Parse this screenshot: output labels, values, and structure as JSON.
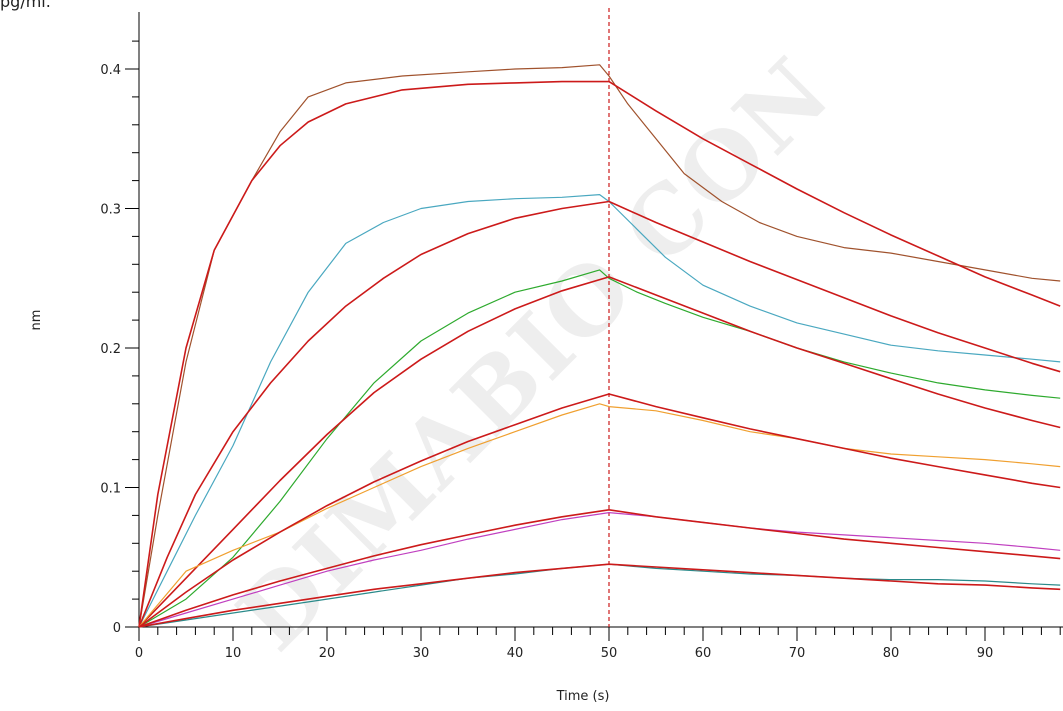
{
  "header_note": "pg/ml.",
  "watermark": "DIMABIO CON",
  "colors": {
    "fit": "#cc1a1a",
    "brown": "#a0522d",
    "cyan": "#4aa8c0",
    "green": "#2eaa2e",
    "orange": "#f0a030",
    "magenta": "#c040c0",
    "teal": "#2a8a8a",
    "divider": "#cc1a1a"
  },
  "chart_data": {
    "type": "line",
    "title": "",
    "xlabel": "Time (s)",
    "ylabel": "nm",
    "xlim": [
      0,
      98
    ],
    "ylim": [
      0,
      0.44
    ],
    "xticks": [
      0,
      10,
      20,
      30,
      40,
      50,
      60,
      70,
      80,
      90
    ],
    "yticks": [
      0,
      0.1,
      0.2,
      0.3,
      0.4
    ],
    "xtick_labels": [
      "0",
      "10",
      "20",
      "30",
      "40",
      "50",
      "60",
      "70",
      "80",
      "90"
    ],
    "ytick_labels": [
      "0",
      "0.1",
      "0.2",
      "0.3",
      "0.4"
    ],
    "vline_x": 50,
    "series": [
      {
        "color_key": "brown",
        "role": "data",
        "x": [
          0,
          2,
          5,
          8,
          12,
          15,
          18,
          22,
          28,
          35,
          40,
          45,
          49,
          50,
          52,
          55,
          58,
          62,
          66,
          70,
          75,
          80,
          85,
          90,
          95,
          98
        ],
        "y": [
          0,
          0.08,
          0.19,
          0.27,
          0.32,
          0.355,
          0.38,
          0.39,
          0.395,
          0.398,
          0.4,
          0.401,
          0.403,
          0.395,
          0.375,
          0.35,
          0.325,
          0.305,
          0.29,
          0.28,
          0.272,
          0.268,
          0.262,
          0.256,
          0.25,
          0.248
        ]
      },
      {
        "color_key": "fit",
        "role": "fit",
        "x": [
          0,
          2,
          5,
          8,
          12,
          15,
          18,
          22,
          28,
          35,
          40,
          45,
          50,
          55,
          60,
          65,
          70,
          75,
          80,
          85,
          90,
          95,
          98
        ],
        "y": [
          0,
          0.095,
          0.2,
          0.27,
          0.32,
          0.345,
          0.362,
          0.375,
          0.385,
          0.389,
          0.39,
          0.391,
          0.391,
          0.37,
          0.35,
          0.332,
          0.314,
          0.297,
          0.281,
          0.266,
          0.251,
          0.238,
          0.23
        ]
      },
      {
        "color_key": "cyan",
        "role": "data",
        "x": [
          0,
          3,
          6,
          10,
          14,
          18,
          22,
          26,
          30,
          35,
          40,
          45,
          49,
          50,
          53,
          56,
          60,
          65,
          70,
          75,
          80,
          85,
          90,
          95,
          98
        ],
        "y": [
          0,
          0.04,
          0.08,
          0.13,
          0.19,
          0.24,
          0.275,
          0.29,
          0.3,
          0.305,
          0.307,
          0.308,
          0.31,
          0.305,
          0.285,
          0.265,
          0.245,
          0.23,
          0.218,
          0.21,
          0.202,
          0.198,
          0.195,
          0.192,
          0.19
        ]
      },
      {
        "color_key": "fit",
        "role": "fit",
        "x": [
          0,
          3,
          6,
          10,
          14,
          18,
          22,
          26,
          30,
          35,
          40,
          45,
          50,
          55,
          60,
          65,
          70,
          75,
          80,
          85,
          90,
          95,
          98
        ],
        "y": [
          0,
          0.05,
          0.095,
          0.14,
          0.175,
          0.205,
          0.23,
          0.25,
          0.267,
          0.282,
          0.293,
          0.3,
          0.305,
          0.29,
          0.276,
          0.262,
          0.249,
          0.236,
          0.223,
          0.211,
          0.2,
          0.189,
          0.183
        ]
      },
      {
        "color_key": "green",
        "role": "data",
        "x": [
          0,
          5,
          10,
          15,
          20,
          25,
          30,
          35,
          40,
          45,
          49,
          50,
          53,
          56,
          60,
          65,
          70,
          75,
          80,
          85,
          90,
          95,
          98
        ],
        "y": [
          0,
          0.02,
          0.05,
          0.09,
          0.135,
          0.175,
          0.205,
          0.225,
          0.24,
          0.248,
          0.256,
          0.25,
          0.24,
          0.232,
          0.222,
          0.212,
          0.2,
          0.19,
          0.182,
          0.175,
          0.17,
          0.166,
          0.164
        ]
      },
      {
        "color_key": "fit",
        "role": "fit",
        "x": [
          0,
          5,
          10,
          15,
          20,
          25,
          30,
          35,
          40,
          45,
          50,
          55,
          60,
          65,
          70,
          75,
          80,
          85,
          90,
          95,
          98
        ],
        "y": [
          0,
          0.035,
          0.07,
          0.105,
          0.138,
          0.168,
          0.192,
          0.212,
          0.228,
          0.241,
          0.251,
          0.238,
          0.225,
          0.212,
          0.2,
          0.189,
          0.178,
          0.167,
          0.157,
          0.148,
          0.143
        ]
      },
      {
        "color_key": "orange",
        "role": "data",
        "x": [
          0,
          5,
          10,
          15,
          20,
          25,
          30,
          35,
          40,
          45,
          49,
          50,
          55,
          60,
          65,
          70,
          75,
          80,
          85,
          90,
          95,
          98
        ],
        "y": [
          0,
          0.04,
          0.055,
          0.068,
          0.085,
          0.1,
          0.115,
          0.128,
          0.14,
          0.152,
          0.16,
          0.158,
          0.155,
          0.148,
          0.14,
          0.135,
          0.128,
          0.124,
          0.122,
          0.12,
          0.117,
          0.115
        ]
      },
      {
        "color_key": "fit",
        "role": "fit",
        "x": [
          0,
          5,
          10,
          15,
          20,
          25,
          30,
          35,
          40,
          45,
          50,
          55,
          60,
          65,
          70,
          75,
          80,
          85,
          90,
          95,
          98
        ],
        "y": [
          0,
          0.025,
          0.048,
          0.068,
          0.087,
          0.104,
          0.119,
          0.133,
          0.145,
          0.157,
          0.167,
          0.158,
          0.15,
          0.142,
          0.135,
          0.128,
          0.121,
          0.115,
          0.109,
          0.103,
          0.1
        ]
      },
      {
        "color_key": "magenta",
        "role": "data",
        "x": [
          0,
          5,
          10,
          15,
          20,
          25,
          30,
          35,
          40,
          45,
          50,
          55,
          60,
          65,
          70,
          75,
          80,
          85,
          90,
          95,
          98
        ],
        "y": [
          0,
          0.01,
          0.02,
          0.03,
          0.04,
          0.048,
          0.055,
          0.063,
          0.07,
          0.077,
          0.082,
          0.079,
          0.075,
          0.071,
          0.068,
          0.066,
          0.064,
          0.062,
          0.06,
          0.057,
          0.055
        ]
      },
      {
        "color_key": "fit",
        "role": "fit",
        "x": [
          0,
          5,
          10,
          15,
          20,
          25,
          30,
          35,
          40,
          45,
          50,
          55,
          60,
          65,
          70,
          75,
          80,
          85,
          90,
          95,
          98
        ],
        "y": [
          0,
          0.012,
          0.023,
          0.033,
          0.042,
          0.051,
          0.059,
          0.066,
          0.073,
          0.079,
          0.084,
          0.079,
          0.075,
          0.071,
          0.067,
          0.063,
          0.06,
          0.057,
          0.054,
          0.051,
          0.049
        ]
      },
      {
        "color_key": "teal",
        "role": "data",
        "x": [
          0,
          5,
          10,
          15,
          20,
          25,
          30,
          35,
          40,
          45,
          50,
          55,
          60,
          65,
          70,
          75,
          80,
          85,
          90,
          95,
          98
        ],
        "y": [
          0,
          0.005,
          0.01,
          0.015,
          0.02,
          0.025,
          0.03,
          0.035,
          0.038,
          0.042,
          0.045,
          0.042,
          0.04,
          0.038,
          0.037,
          0.035,
          0.034,
          0.034,
          0.033,
          0.031,
          0.03
        ]
      },
      {
        "color_key": "fit",
        "role": "fit",
        "x": [
          0,
          5,
          10,
          15,
          20,
          25,
          30,
          35,
          40,
          45,
          50,
          55,
          60,
          65,
          70,
          75,
          80,
          85,
          90,
          95,
          98
        ],
        "y": [
          0,
          0.006,
          0.012,
          0.017,
          0.022,
          0.027,
          0.031,
          0.035,
          0.039,
          0.042,
          0.045,
          0.043,
          0.041,
          0.039,
          0.037,
          0.035,
          0.033,
          0.031,
          0.03,
          0.028,
          0.027
        ]
      }
    ]
  }
}
